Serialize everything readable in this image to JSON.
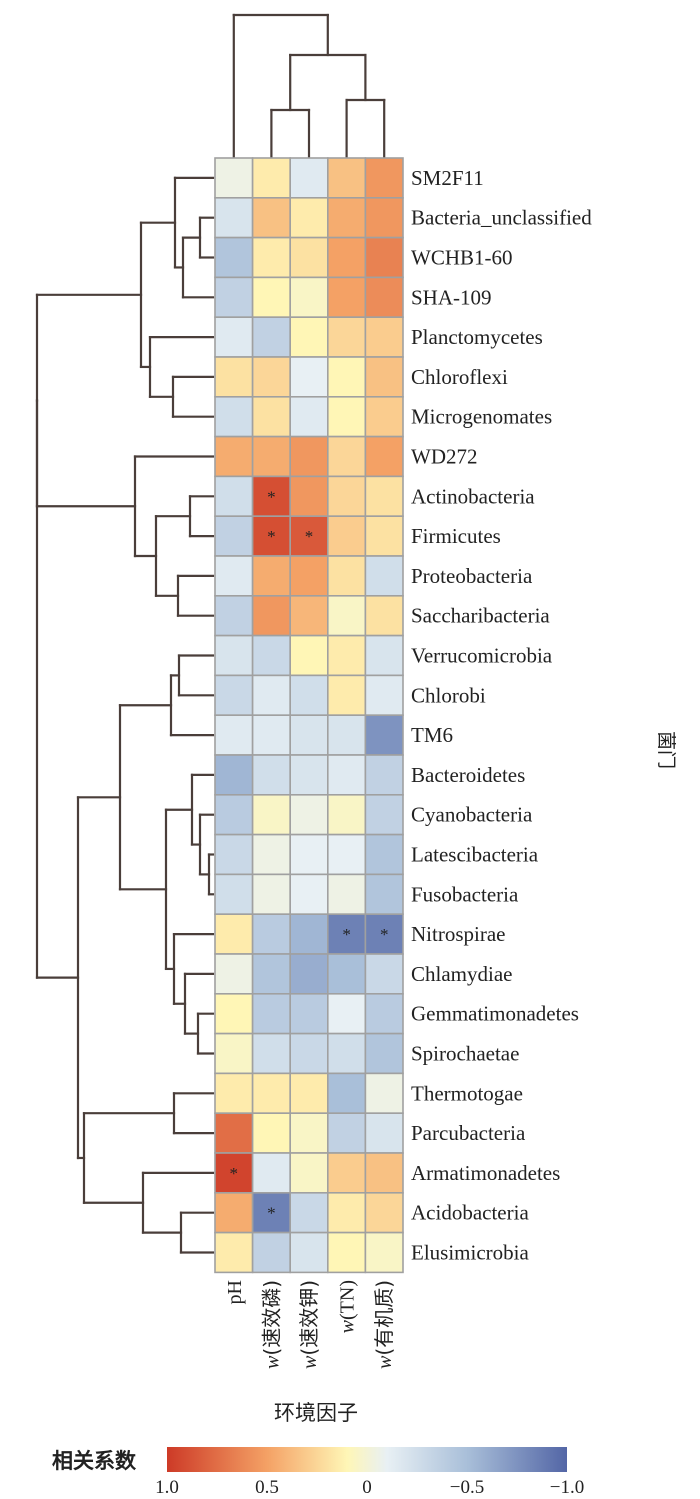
{
  "chart_data": {
    "type": "heatmap",
    "title": "",
    "xlabel": "环境因子",
    "ylabel": "菌门",
    "columns": [
      {
        "prefix": "",
        "italic": "",
        "text": "pH"
      },
      {
        "prefix": "",
        "italic": "w",
        "text": "(速效磷)"
      },
      {
        "prefix": "",
        "italic": "w",
        "text": "(速效钾)"
      },
      {
        "prefix": "",
        "italic": "w",
        "text": "(TN)"
      },
      {
        "prefix": "",
        "italic": "w",
        "text": "(有机质)"
      }
    ],
    "rows": [
      "SM2F11",
      "Bacteria_unclassified",
      "WCHB1-60",
      "SHA-109",
      "Planctomycetes",
      "Chloroflexi",
      "Microgenomates",
      "WD272",
      "Actinobacteria",
      "Firmicutes",
      "Proteobacteria",
      "Saccharibacteria",
      "Verrucomicrobia",
      "Chlorobi",
      "TM6",
      "Bacteroidetes",
      "Cyanobacteria",
      "Latescibacteria",
      "Fusobacteria",
      "Nitrospirae",
      "Chlamydiae",
      "Gemmatimonadetes",
      "Spirochaetae",
      "Thermotogae",
      "Parcubacteria",
      "Armatimonadetes",
      "Acidobacteria",
      "Elusimicrobia"
    ],
    "values": [
      [
        -0.05,
        0.15,
        -0.15,
        0.35,
        0.55
      ],
      [
        -0.2,
        0.35,
        0.15,
        0.45,
        0.55
      ],
      [
        -0.45,
        0.15,
        0.2,
        0.5,
        0.65
      ],
      [
        -0.35,
        0.1,
        0.05,
        0.5,
        0.6
      ],
      [
        -0.15,
        -0.35,
        0.1,
        0.25,
        0.3
      ],
      [
        0.2,
        0.25,
        -0.1,
        0.1,
        0.35
      ],
      [
        -0.25,
        0.2,
        -0.15,
        0.1,
        0.3
      ],
      [
        0.45,
        0.45,
        0.55,
        0.25,
        0.5
      ],
      [
        -0.25,
        0.9,
        0.55,
        0.25,
        0.2
      ],
      [
        -0.35,
        0.9,
        0.85,
        0.3,
        0.2
      ],
      [
        -0.15,
        0.45,
        0.5,
        0.2,
        -0.25
      ],
      [
        -0.35,
        0.55,
        0.4,
        0.05,
        0.2
      ],
      [
        -0.2,
        -0.3,
        0.1,
        0.15,
        -0.2
      ],
      [
        -0.3,
        -0.15,
        -0.25,
        0.15,
        -0.15
      ],
      [
        -0.15,
        -0.15,
        -0.2,
        -0.2,
        -0.75
      ],
      [
        -0.55,
        -0.25,
        -0.2,
        -0.15,
        -0.35
      ],
      [
        -0.4,
        0.05,
        -0.05,
        0.05,
        -0.35
      ],
      [
        -0.3,
        -0.05,
        -0.1,
        -0.1,
        -0.45
      ],
      [
        -0.25,
        -0.05,
        -0.1,
        -0.05,
        -0.45
      ],
      [
        0.15,
        -0.4,
        -0.55,
        -0.85,
        -0.85
      ],
      [
        -0.05,
        -0.45,
        -0.6,
        -0.5,
        -0.3
      ],
      [
        0.1,
        -0.4,
        -0.4,
        -0.1,
        -0.4
      ],
      [
        0.05,
        -0.25,
        -0.3,
        -0.25,
        -0.45
      ],
      [
        0.15,
        0.15,
        0.15,
        -0.5,
        -0.05
      ],
      [
        0.75,
        0.1,
        0.05,
        -0.35,
        -0.2
      ],
      [
        0.95,
        -0.15,
        0.05,
        0.3,
        0.35
      ],
      [
        0.45,
        -0.85,
        -0.3,
        0.15,
        0.25
      ],
      [
        0.15,
        -0.35,
        -0.2,
        0.1,
        0.05
      ]
    ],
    "significance": [
      [
        8,
        1
      ],
      [
        9,
        1
      ],
      [
        9,
        2
      ],
      [
        19,
        3
      ],
      [
        19,
        4
      ],
      [
        25,
        0
      ],
      [
        26,
        1
      ]
    ],
    "significance_mark": "*",
    "colorbar": {
      "title": "相关系数",
      "ticks": [
        {
          "value": 1.0,
          "label": "1.0"
        },
        {
          "value": 0.5,
          "label": "0.5"
        },
        {
          "value": 0.0,
          "label": "0"
        },
        {
          "value": -0.5,
          "label": "−0.5"
        },
        {
          "value": -1.0,
          "label": "−1.0"
        }
      ]
    },
    "colors": {
      "positive_high": "#cd3a27",
      "positive_mid": "#f4a165",
      "neutral_warm": "#fff6b6",
      "neutral_cool": "#e8f0f4",
      "negative_mid": "#a9bfd9",
      "negative_high": "#5366a6",
      "cell_border": "#a0a0a0",
      "tree": "#4a3e3a"
    }
  }
}
